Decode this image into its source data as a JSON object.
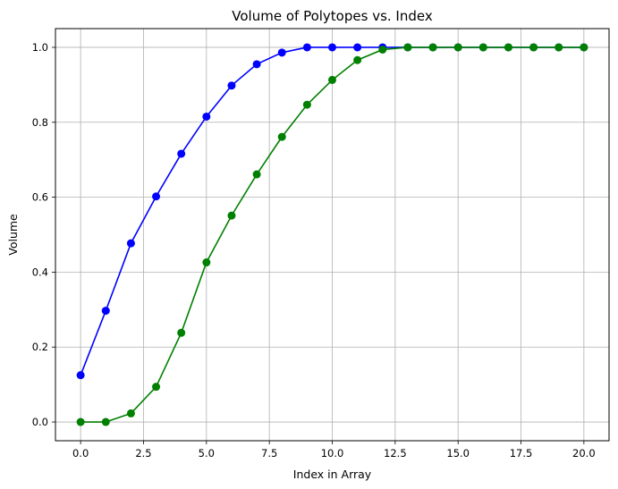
{
  "chart_data": {
    "type": "line",
    "title": "Volume of Polytopes vs. Index",
    "xlabel": "Index in Array",
    "ylabel": "Volume",
    "xlim": [
      -1.0,
      21.0
    ],
    "ylim": [
      -0.05,
      1.05
    ],
    "x_ticks": [
      0.0,
      2.5,
      5.0,
      7.5,
      10.0,
      12.5,
      15.0,
      17.5,
      20.0
    ],
    "x_tick_labels": [
      "0.0",
      "2.5",
      "5.0",
      "7.5",
      "10.0",
      "12.5",
      "15.0",
      "17.5",
      "20.0"
    ],
    "y_ticks": [
      0.0,
      0.2,
      0.4,
      0.6,
      0.8,
      1.0
    ],
    "y_tick_labels": [
      "0.0",
      "0.2",
      "0.4",
      "0.6",
      "0.8",
      "1.0"
    ],
    "grid": true,
    "x": [
      0,
      1,
      2,
      3,
      4,
      5,
      6,
      7,
      8,
      9,
      10,
      11,
      12,
      13,
      14,
      15,
      16,
      17,
      18,
      19,
      20
    ],
    "series": [
      {
        "color": "#0000ff",
        "marker": "circle",
        "values": [
          0.125,
          0.297,
          0.477,
          0.602,
          0.716,
          0.815,
          0.898,
          0.955,
          0.986,
          1.0,
          1.0,
          1.0,
          1.0,
          1.0,
          1.0,
          1.0,
          1.0,
          1.0,
          1.0,
          1.0,
          1.0
        ]
      },
      {
        "color": "#008000",
        "marker": "circle",
        "values": [
          0.0,
          0.0,
          0.023,
          0.094,
          0.238,
          0.426,
          0.551,
          0.661,
          0.761,
          0.847,
          0.913,
          0.966,
          0.994,
          1.0,
          1.0,
          1.0,
          1.0,
          1.0,
          1.0,
          1.0,
          1.0
        ]
      }
    ]
  }
}
